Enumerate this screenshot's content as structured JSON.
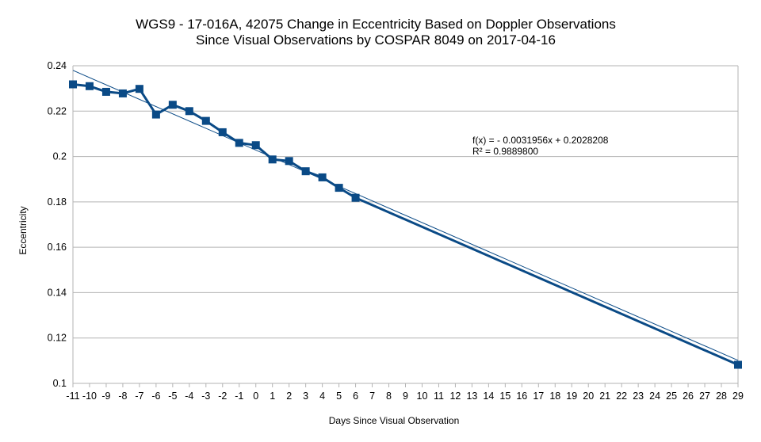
{
  "chart_data": {
    "type": "line",
    "title": "WGS9 - 17-016A, 42075 Change in Eccentricity Based on Doppler Observations",
    "subtitle": "Since Visual Observations by COSPAR 8049 on 2017-04-16",
    "xlabel": "Days Since Visual Observation",
    "ylabel": "Eccentricity",
    "xlim": [
      -11,
      29
    ],
    "ylim": [
      0.1,
      0.24
    ],
    "x_ticks": [
      "-11",
      "-10",
      "-9",
      "-8",
      "-7",
      "-6",
      "-5",
      "-4",
      "-3",
      "-2",
      "-1",
      "0",
      "1",
      "2",
      "3",
      "4",
      "5",
      "6",
      "7",
      "8",
      "9",
      "10",
      "11",
      "12",
      "13",
      "14",
      "15",
      "16",
      "17",
      "18",
      "19",
      "20",
      "21",
      "22",
      "23",
      "24",
      "25",
      "26",
      "27",
      "28",
      "29"
    ],
    "y_ticks": [
      "0.1",
      "0.12",
      "0.14",
      "0.16",
      "0.18",
      "0.2",
      "0.22",
      "0.24"
    ],
    "grid": "horizontal",
    "legend": "none",
    "series": [
      {
        "x": [
          -11,
          -10,
          -9,
          -8,
          -7,
          -6,
          -5,
          -4,
          -3,
          -2,
          -1,
          0,
          1,
          2,
          3,
          4,
          5,
          6,
          29
        ],
        "y": [
          0.2318,
          0.231,
          0.2285,
          0.2278,
          0.2298,
          0.2185,
          0.2228,
          0.22,
          0.2157,
          0.2107,
          0.206,
          0.205,
          0.1987,
          0.198,
          0.1935,
          0.1908,
          0.1862,
          0.1818,
          0.1082
        ],
        "color": "#0a4a86"
      }
    ],
    "trendline": {
      "equation": "f(x) =  - 0.0031956x + 0.2028208",
      "r_squared": "R² = 0.9889800",
      "slope": -0.0031956,
      "intercept": 0.2028208,
      "color": "#0a4a86"
    },
    "colors": {
      "series": "#0a4a86",
      "grid": "#b3b3b3",
      "axis": "#b3b3b3"
    }
  }
}
